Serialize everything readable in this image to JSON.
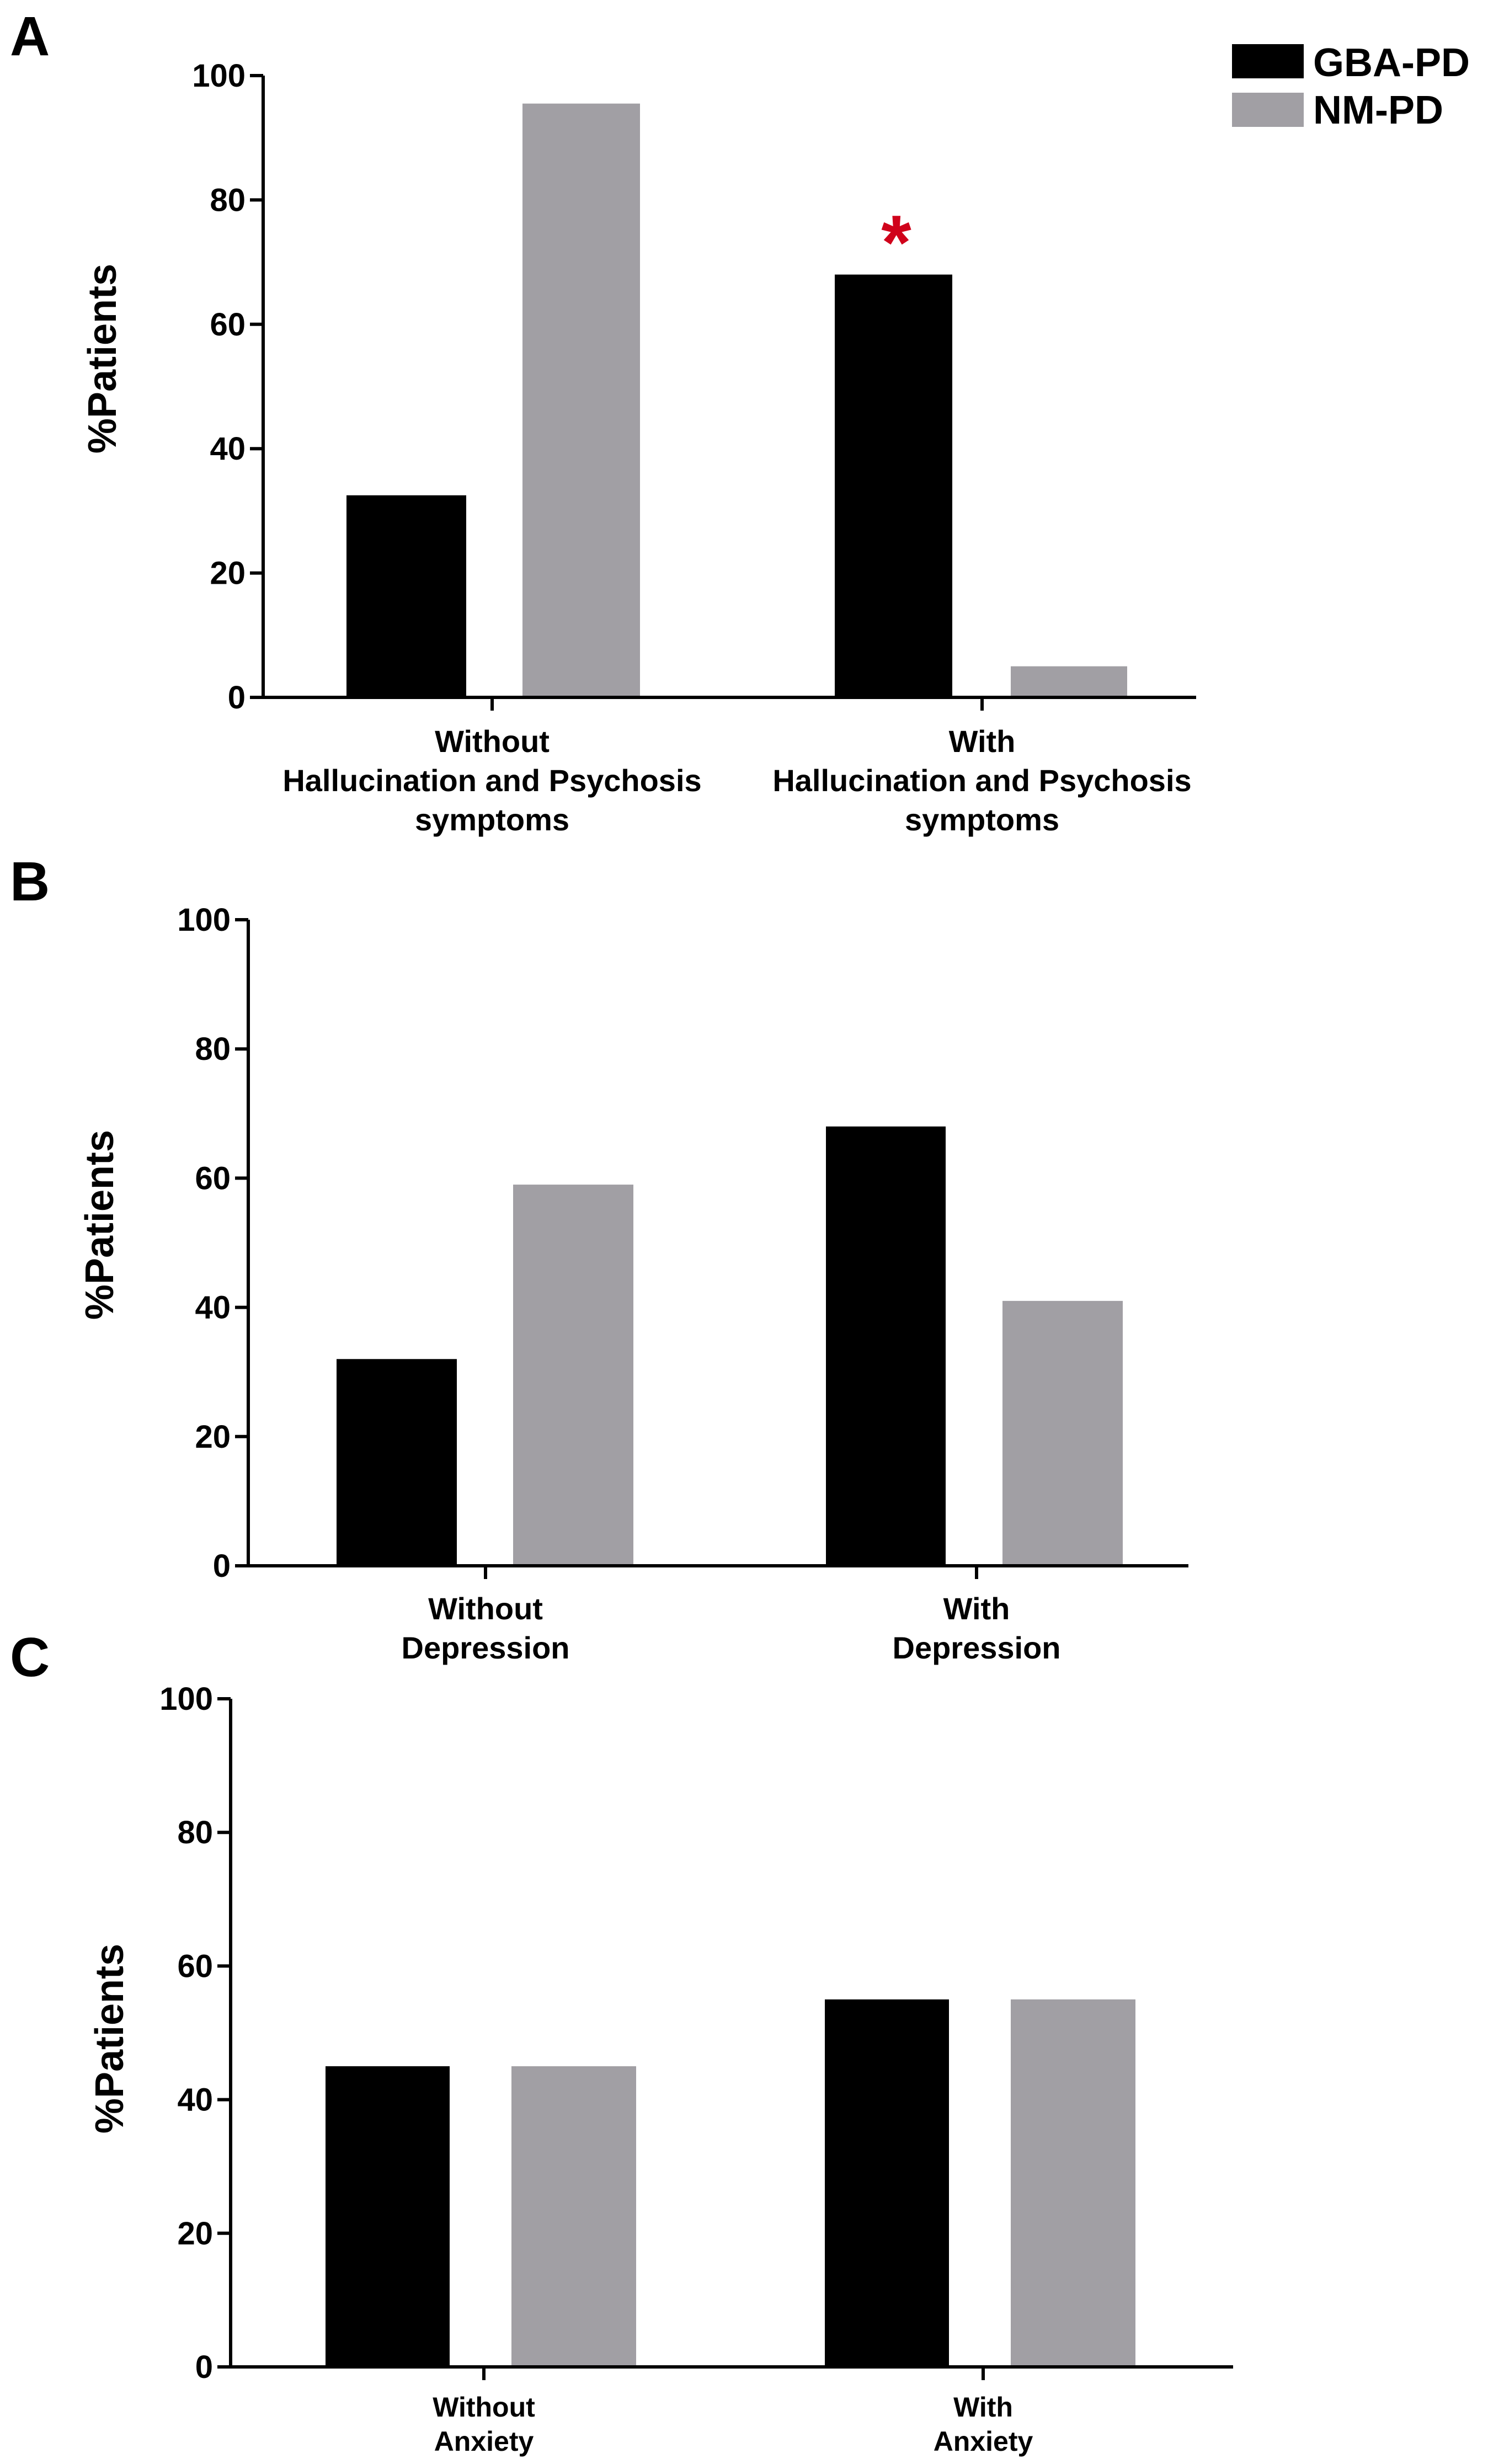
{
  "colors": {
    "gba": "#000000",
    "nm": "#a19fa4",
    "axis": "#000000",
    "star": "#d0021b"
  },
  "legend": [
    {
      "label": "GBA-PD",
      "color": "#000000"
    },
    {
      "label": "NM-PD",
      "color": "#a19fa4"
    }
  ],
  "chart_data": [
    {
      "panel": "A",
      "type": "bar",
      "ylabel": "%Patients",
      "ylim": [
        0,
        100
      ],
      "yticks": [
        "0",
        "20",
        "40",
        "60",
        "80",
        "100"
      ],
      "categories": [
        [
          "Without",
          "Hallucination and Psychosis",
          "symptoms"
        ],
        [
          "With",
          "Hallucination and Psychosis",
          "symptoms"
        ]
      ],
      "series": [
        {
          "name": "GBA-PD",
          "values": [
            32.5,
            68
          ]
        },
        {
          "name": "NM-PD",
          "values": [
            95.5,
            5
          ]
        }
      ],
      "annotation": {
        "text": "*",
        "category_index": 1,
        "series_index": 0
      }
    },
    {
      "panel": "B",
      "type": "bar",
      "ylabel": "%Patients",
      "ylim": [
        0,
        100
      ],
      "yticks": [
        "0",
        "20",
        "40",
        "60",
        "80",
        "100"
      ],
      "categories": [
        [
          "Without",
          "Depression"
        ],
        [
          "With",
          "Depression"
        ]
      ],
      "series": [
        {
          "name": "GBA-PD",
          "values": [
            32,
            68
          ]
        },
        {
          "name": "NM-PD",
          "values": [
            59,
            41
          ]
        }
      ]
    },
    {
      "panel": "C",
      "type": "bar",
      "ylabel": "%Patients",
      "ylim": [
        0,
        100
      ],
      "yticks": [
        "0",
        "20",
        "40",
        "60",
        "80",
        "100"
      ],
      "categories": [
        [
          "Without",
          "Anxiety"
        ],
        [
          "With",
          "Anxiety"
        ]
      ],
      "series": [
        {
          "name": "GBA-PD",
          "values": [
            45,
            55
          ]
        },
        {
          "name": "NM-PD",
          "values": [
            45,
            55
          ]
        }
      ]
    }
  ]
}
